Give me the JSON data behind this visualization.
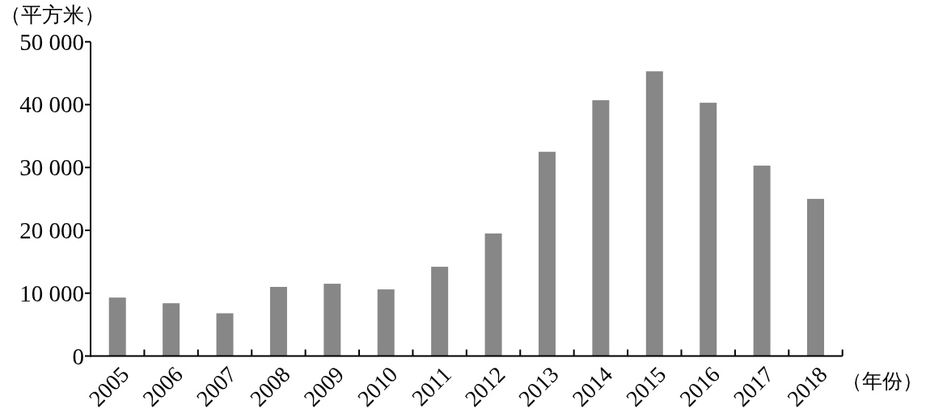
{
  "chart_data": {
    "type": "bar",
    "xlabel": "（年份）",
    "ylabel": "（平方米）",
    "categories": [
      "2005",
      "2006",
      "2007",
      "2008",
      "2009",
      "2010",
      "2011",
      "2012",
      "2013",
      "2014",
      "2015",
      "2016",
      "2017",
      "2018"
    ],
    "values": [
      9300,
      8400,
      6800,
      11000,
      11500,
      10600,
      14200,
      19500,
      32500,
      40700,
      45300,
      40300,
      30300,
      25000
    ],
    "color": "#878787",
    "ylim": [
      0,
      50000
    ],
    "yticks": [
      0,
      {
        "value": 10000,
        "label": "10 000"
      },
      {
        "value": 20000,
        "label": "20 000"
      },
      {
        "value": 30000,
        "label": "30 000"
      },
      {
        "value": 40000,
        "label": "40 000"
      },
      {
        "value": 50000,
        "label": "50 000"
      }
    ]
  }
}
